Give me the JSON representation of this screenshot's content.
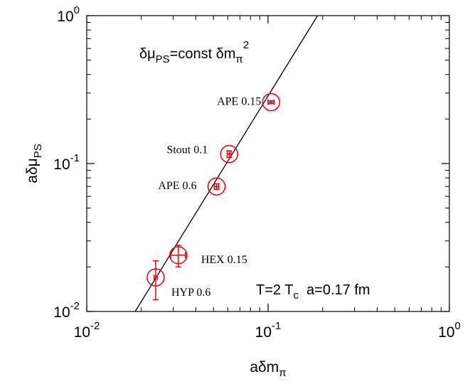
{
  "chart_data": {
    "type": "scatter",
    "x_scale": "log",
    "y_scale": "log",
    "xlim": [
      0.01,
      1
    ],
    "ylim": [
      0.01,
      1
    ],
    "x_ticks": [
      {
        "value": 0.01,
        "base": "10",
        "exp": "-2"
      },
      {
        "value": 0.1,
        "base": "10",
        "exp": "-1"
      },
      {
        "value": 1,
        "base": "10",
        "exp": "0"
      }
    ],
    "y_ticks": [
      {
        "value": 0.01,
        "base": "10",
        "exp": "-2"
      },
      {
        "value": 0.1,
        "base": "10",
        "exp": "-1"
      },
      {
        "value": 1,
        "base": "10",
        "exp": "0"
      }
    ],
    "xlabel": {
      "main": "aδm",
      "sub": "π"
    },
    "ylabel": {
      "main": "aδμ",
      "sub": "PS"
    },
    "fit_line": {
      "label": {
        "main": "δμ",
        "sub": "PS",
        "mid": "=const δm",
        "sub2": "π",
        "sup": "2"
      },
      "exponent": 2,
      "points": [
        [
          0.0185,
          0.01
        ],
        [
          0.1875,
          1.0
        ]
      ]
    },
    "points": [
      {
        "label": "APE 0.15",
        "x": 0.104,
        "y": 0.26,
        "xerr": 0.004,
        "yerr": 0.006
      },
      {
        "label": "Stout 0.1",
        "x": 0.061,
        "y": 0.116,
        "xerr": 0.0015,
        "yerr": 0.006
      },
      {
        "label": "APE 0.6",
        "x": 0.052,
        "y": 0.07,
        "xerr": 0.0015,
        "yerr": 0.003
      },
      {
        "label": "HEX 0.15",
        "x": 0.032,
        "y": 0.024,
        "xerr": 0.003,
        "yerr": 0.004
      },
      {
        "label": "HYP 0.6",
        "x": 0.024,
        "y": 0.017,
        "xerr": 0.0005,
        "yerr": 0.005
      }
    ],
    "annotation": {
      "part1": "T=2 T",
      "sub": "c",
      "part2": "  a=0.17 fm"
    },
    "marker_color": "#e8000b",
    "line_color": "#000000",
    "grid": false,
    "legend": "none"
  }
}
